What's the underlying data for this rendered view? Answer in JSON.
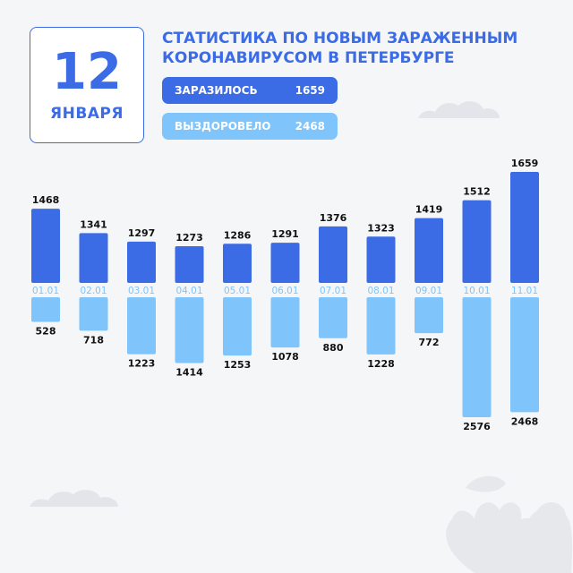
{
  "date": {
    "day": "12",
    "month": "ЯНВАРЯ"
  },
  "title": {
    "line1": "СТАТИСТИКА ПО НОВЫМ ЗАРАЖЕННЫМ",
    "line2": "КОРОНАВИРУСОМ В ПЕТЕРБУРГЕ"
  },
  "summary": {
    "infected_label": "ЗАРАЗИЛОСЬ",
    "infected_value": "1659",
    "recovered_label": "ВЫЗДОРОВЕЛО",
    "recovered_value": "2468"
  },
  "colors": {
    "infected": "#3b6be5",
    "recovered": "#7fc4fb",
    "text": "#111111"
  },
  "chart_data": {
    "type": "bar",
    "categories": [
      "01.01",
      "02.01",
      "03.01",
      "04.01",
      "05.01",
      "06.01",
      "07.01",
      "08.01",
      "09.01",
      "10.01",
      "11.01"
    ],
    "series": [
      {
        "values": [
          1468,
          1341,
          1297,
          1273,
          1286,
          1291,
          1376,
          1323,
          1419,
          1512,
          1659
        ]
      },
      {
        "values": [
          528,
          718,
          1223,
          1414,
          1253,
          1078,
          880,
          1228,
          772,
          2576,
          2468
        ]
      }
    ]
  }
}
